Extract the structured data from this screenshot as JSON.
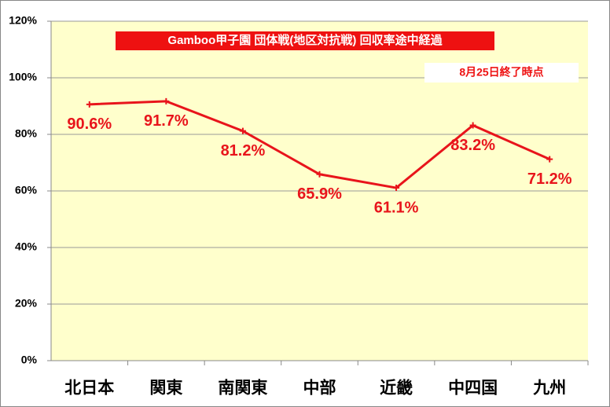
{
  "chart_data": {
    "type": "line",
    "title": "Gamboo甲子園 団体戦(地区対抗戦) 回収率途中経過",
    "subtitle": "8月25日終了時点",
    "categories": [
      "北日本",
      "関東",
      "南関東",
      "中部",
      "近畿",
      "中四国",
      "九州"
    ],
    "values": [
      90.6,
      91.7,
      81.2,
      65.9,
      61.1,
      83.2,
      71.2
    ],
    "value_labels": [
      "90.6%",
      "91.7%",
      "81.2%",
      "65.9%",
      "61.1%",
      "83.2%",
      "71.2%"
    ],
    "color": "#e8141b",
    "ylim": [
      0,
      120
    ],
    "yticks": [
      {
        "value": 0,
        "label": "0%"
      },
      {
        "value": 20,
        "label": "20%"
      },
      {
        "value": 40,
        "label": "40%"
      },
      {
        "value": 60,
        "label": "60%"
      },
      {
        "value": 80,
        "label": "80%"
      },
      {
        "value": 100,
        "label": "100%"
      },
      {
        "value": 120,
        "label": "120%"
      }
    ],
    "grid": true
  }
}
